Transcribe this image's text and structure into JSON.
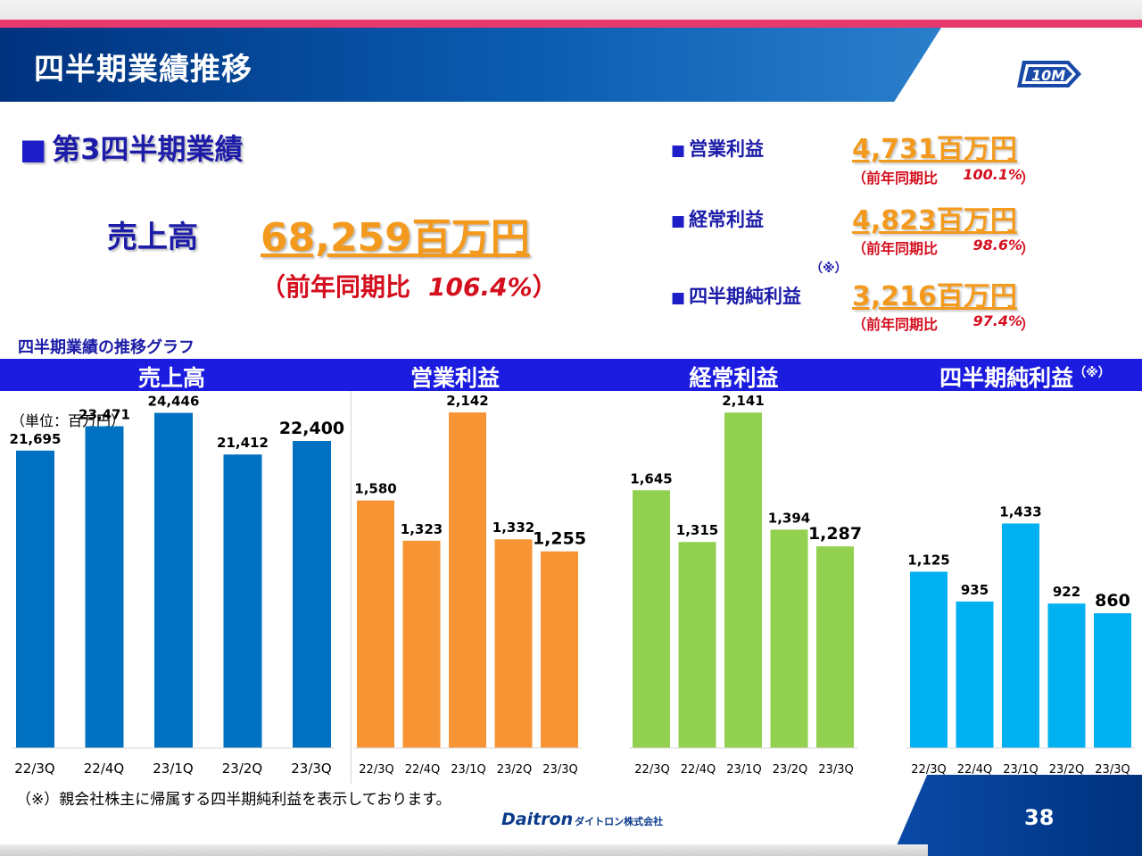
{
  "slide": {
    "title": "四半期業績推移",
    "page_number": "38",
    "footnote": "（※）親会社株主に帰属する四半期純利益を表示しております。",
    "logo_text": "10M",
    "company_brand": "Daitron",
    "company_kana": "ダイトロン株式会社"
  },
  "summary": {
    "heading_marker": "■",
    "heading": "第3四半期業績",
    "revenue_label": "売上高",
    "revenue_value": "68,259百万円",
    "revenue_yoy_prefix": "（前年同期比",
    "revenue_yoy_value": "106.4%",
    "revenue_yoy_suffix": "）",
    "kpi_marker": "■",
    "note_mark": "（※）",
    "kpis": [
      {
        "label": "営業利益",
        "value": "4,731百万円",
        "yoy_prefix": "（前年同期比",
        "yoy_value": "100.1%",
        "yoy_suffix": "）"
      },
      {
        "label": "経常利益",
        "value": "4,823百万円",
        "yoy_prefix": "（前年同期比",
        "yoy_value": "98.6%",
        "yoy_suffix": "）"
      },
      {
        "label": "四半期純利益",
        "value": "3,216百万円",
        "yoy_prefix": "（前年同期比",
        "yoy_value": "97.4%",
        "yoy_suffix": "）"
      }
    ]
  },
  "graphs": {
    "caption": "四半期業績の推移グラフ",
    "unit_label": "（単位：百万円）",
    "panel_titles": [
      "売上高",
      "営業利益",
      "経常利益",
      "四半期純利益"
    ],
    "panel_note": "（※）"
  },
  "colors": {
    "revenue": "#0070c0",
    "operating": "#f79433",
    "ordinary": "#92d050",
    "net": "#00b0f0",
    "header": "#1c1ce0",
    "accent_orange": "#f39a1e",
    "accent_red": "#d40f1e",
    "title_blue": "#00327e"
  },
  "chart_data": [
    {
      "type": "bar",
      "title": "売上高",
      "categories": [
        "22/3Q",
        "22/4Q",
        "23/1Q",
        "23/2Q",
        "23/3Q"
      ],
      "values": [
        21695,
        23471,
        24446,
        21412,
        22400
      ],
      "labels": [
        "21,695",
        "23,471",
        "24,446",
        "21,412",
        "22,400"
      ],
      "ylim": [
        0,
        28000
      ],
      "color": "#0070c0"
    },
    {
      "type": "bar",
      "title": "営業利益",
      "categories": [
        "22/3Q",
        "22/4Q",
        "23/1Q",
        "23/2Q",
        "23/3Q"
      ],
      "values": [
        1580,
        1323,
        2142,
        1332,
        1255
      ],
      "labels": [
        "1,580",
        "1,323",
        "2,142",
        "1,332",
        "1,255"
      ],
      "ylim": [
        0,
        2450
      ],
      "color": "#f79433"
    },
    {
      "type": "bar",
      "title": "経常利益",
      "categories": [
        "22/3Q",
        "22/4Q",
        "23/1Q",
        "23/2Q",
        "23/3Q"
      ],
      "values": [
        1645,
        1315,
        2141,
        1394,
        1287
      ],
      "labels": [
        "1,645",
        "1,315",
        "2,141",
        "1,394",
        "1,287"
      ],
      "ylim": [
        0,
        2450
      ],
      "color": "#92d050"
    },
    {
      "type": "bar",
      "title": "四半期純利益",
      "categories": [
        "22/3Q",
        "22/4Q",
        "23/1Q",
        "23/2Q",
        "23/3Q"
      ],
      "values": [
        1125,
        935,
        1433,
        922,
        860
      ],
      "labels": [
        "1,125",
        "935",
        "1,433",
        "922",
        "860"
      ],
      "ylim": [
        0,
        2450
      ],
      "color": "#00b0f0"
    }
  ]
}
